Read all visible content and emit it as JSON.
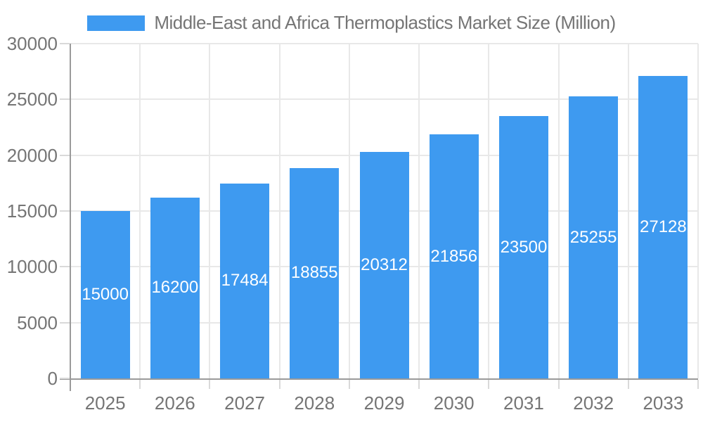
{
  "legend": {
    "position": "top"
  },
  "colors": {
    "bar": "#3E9AF0",
    "grid": "#e8e8e8",
    "axis": "#9a9a9a",
    "tick": "#d9d9d9",
    "text": "#757575",
    "value_label": "#ffffff",
    "background": "#ffffff"
  },
  "chart_data": {
    "type": "bar",
    "title": "Middle-East and Africa Thermoplastics Market Size (Million)",
    "series_name": "Middle-East and Africa Thermoplastics Market Size (Million)",
    "categories": [
      "2025",
      "2026",
      "2027",
      "2028",
      "2029",
      "2030",
      "2031",
      "2032",
      "2033"
    ],
    "values": [
      15000,
      16200,
      17484,
      18855,
      20312,
      21856,
      23500,
      25255,
      27128
    ],
    "xlabel": "",
    "ylabel": "",
    "ylim": [
      0,
      30000
    ],
    "yticks": [
      0,
      5000,
      10000,
      15000,
      20000,
      25000,
      30000
    ],
    "grid": true,
    "legend_position": "top",
    "value_label_position": "inside-center"
  }
}
